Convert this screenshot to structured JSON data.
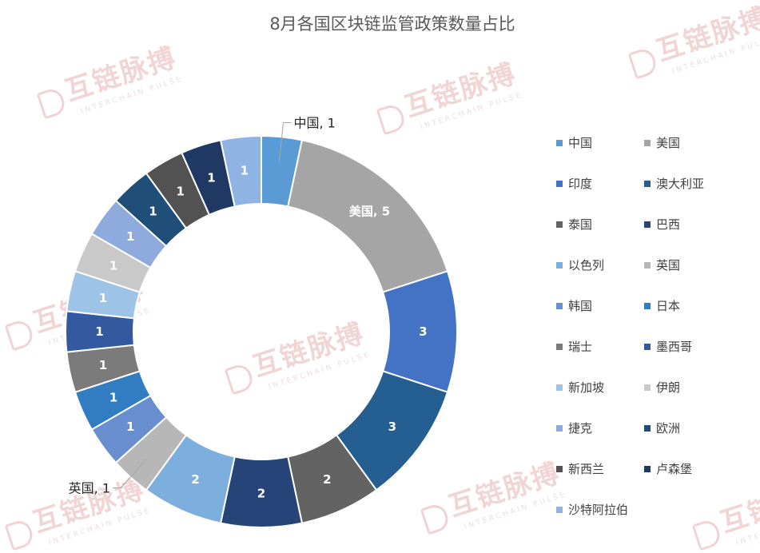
{
  "watermark": {
    "brand": "互链脉搏",
    "sub": "INTERCHAIN PULSE"
  },
  "chart_data": {
    "type": "pie",
    "donut": true,
    "title": "8月各国区块链监管政策数量占比",
    "legend_position": "right",
    "slices": [
      {
        "label": "中国",
        "value": 1,
        "color": "#5b9bd5",
        "data_label": "中国, 1",
        "label_outside": true
      },
      {
        "label": "美国",
        "value": 5,
        "color": "#a5a5a5",
        "data_label": "美国, 5",
        "label_outside": false
      },
      {
        "label": "印度",
        "value": 3,
        "color": "#4472c4",
        "data_label": "3",
        "label_outside": false
      },
      {
        "label": "澳大利亚",
        "value": 3,
        "color": "#255e91",
        "data_label": "3",
        "label_outside": false
      },
      {
        "label": "泰国",
        "value": 2,
        "color": "#636363",
        "data_label": "2",
        "label_outside": false
      },
      {
        "label": "巴西",
        "value": 2,
        "color": "#264478",
        "data_label": "2",
        "label_outside": false
      },
      {
        "label": "以色列",
        "value": 2,
        "color": "#7cafdd",
        "data_label": "2",
        "label_outside": false
      },
      {
        "label": "英国",
        "value": 1,
        "color": "#b7b7b7",
        "data_label": "英国, 1",
        "label_outside": true
      },
      {
        "label": "韩国",
        "value": 1,
        "color": "#698ed0",
        "data_label": "1",
        "label_outside": false
      },
      {
        "label": "日本",
        "value": 1,
        "color": "#327dc2",
        "data_label": "1",
        "label_outside": false
      },
      {
        "label": "瑞士",
        "value": 1,
        "color": "#7b7b7b",
        "data_label": "1",
        "label_outside": false
      },
      {
        "label": "墨西哥",
        "value": 1,
        "color": "#335aa1",
        "data_label": "1",
        "label_outside": false
      },
      {
        "label": "新加坡",
        "value": 1,
        "color": "#9dc3e6",
        "data_label": "1",
        "label_outside": false
      },
      {
        "label": "伊朗",
        "value": 1,
        "color": "#c9c9c9",
        "data_label": "1",
        "label_outside": false
      },
      {
        "label": "捷克",
        "value": 1,
        "color": "#8faadc",
        "data_label": "1",
        "label_outside": false
      },
      {
        "label": "欧洲",
        "value": 1,
        "color": "#1f4e79",
        "data_label": "1",
        "label_outside": false
      },
      {
        "label": "新西兰",
        "value": 1,
        "color": "#525252",
        "data_label": "1",
        "label_outside": false
      },
      {
        "label": "卢森堡",
        "value": 1,
        "color": "#203864",
        "data_label": "1",
        "label_outside": false
      },
      {
        "label": "沙特阿拉伯",
        "value": 1,
        "color": "#8fb4e3",
        "data_label": "1",
        "label_outside": false
      }
    ]
  }
}
